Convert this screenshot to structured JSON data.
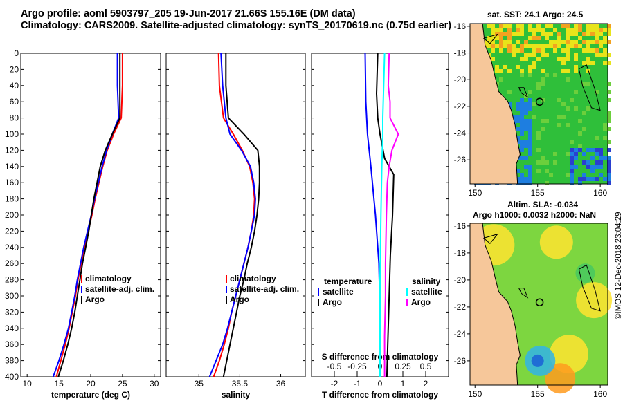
{
  "header": {
    "line1": "Argo profile: aoml 5903797_205 19-Jun-2017 21.66S 155.16E (DM data)",
    "line2": "Climatology: CARS2009. Satellite-adjusted climatology: synTS_20170619.nc (0.75d earlier)"
  },
  "stamp": "©IMOS 12-Dec-2018 23:04:29",
  "colors": {
    "climatology": "#ff0000",
    "satellite": "#0000ff",
    "argo": "#000000",
    "sat_diff": "#00ffff",
    "argo_diff": "#ff00ff",
    "land": "#f6c79a",
    "sst_warm": "#e8e41a",
    "sst_mid": "#2fbf3a",
    "sst_cool": "#1e7ee0",
    "sla_base": "#7dd640",
    "sla_high": "#ffe430",
    "sla_low": "#1a5fd6"
  },
  "chart_data": [
    {
      "id": "temperature",
      "type": "line",
      "xlabel": "temperature (deg C)",
      "ylabel": "",
      "xlim": [
        9,
        31
      ],
      "ylim": [
        400,
        0
      ],
      "xticks": [
        10,
        15,
        20,
        25,
        30
      ],
      "yticks": [
        0,
        20,
        40,
        60,
        80,
        100,
        120,
        140,
        160,
        180,
        200,
        220,
        240,
        260,
        280,
        300,
        320,
        340,
        360,
        380,
        400
      ],
      "legend": [
        "climatology",
        "satellite-adj. clim.",
        "Argo"
      ],
      "legend_position": "lower-middle",
      "series": [
        {
          "name": "climatology",
          "color": "#ff0000",
          "points": [
            [
              25.0,
              0
            ],
            [
              25.0,
              40
            ],
            [
              24.8,
              80
            ],
            [
              23.6,
              100
            ],
            [
              22.6,
              120
            ],
            [
              21.9,
              140
            ],
            [
              21.3,
              160
            ],
            [
              20.7,
              180
            ],
            [
              20.2,
              200
            ],
            [
              19.6,
              220
            ],
            [
              19.0,
              240
            ],
            [
              18.5,
              260
            ],
            [
              18.0,
              280
            ],
            [
              17.6,
              300
            ],
            [
              17.1,
              320
            ],
            [
              16.6,
              340
            ],
            [
              16.0,
              360
            ],
            [
              15.3,
              380
            ],
            [
              14.6,
              400
            ]
          ]
        },
        {
          "name": "satellite-adj. clim.",
          "color": "#0000ff",
          "points": [
            [
              24.2,
              0
            ],
            [
              24.2,
              40
            ],
            [
              24.4,
              80
            ],
            [
              23.4,
              100
            ],
            [
              22.5,
              120
            ],
            [
              21.8,
              140
            ],
            [
              21.2,
              160
            ],
            [
              20.6,
              180
            ],
            [
              20.1,
              200
            ],
            [
              19.5,
              220
            ],
            [
              18.9,
              240
            ],
            [
              18.4,
              260
            ],
            [
              17.9,
              280
            ],
            [
              17.5,
              300
            ],
            [
              17.0,
              320
            ],
            [
              16.5,
              340
            ],
            [
              15.8,
              360
            ],
            [
              15.0,
              380
            ],
            [
              14.1,
              400
            ]
          ]
        },
        {
          "name": "Argo",
          "color": "#000000",
          "points": [
            [
              24.6,
              0
            ],
            [
              24.6,
              40
            ],
            [
              24.6,
              80
            ],
            [
              23.4,
              100
            ],
            [
              22.3,
              120
            ],
            [
              21.5,
              140
            ],
            [
              21.0,
              160
            ],
            [
              20.5,
              180
            ],
            [
              20.1,
              200
            ],
            [
              19.7,
              220
            ],
            [
              19.2,
              240
            ],
            [
              18.7,
              260
            ],
            [
              18.3,
              280
            ],
            [
              17.9,
              300
            ],
            [
              17.5,
              320
            ],
            [
              17.0,
              340
            ],
            [
              16.4,
              360
            ],
            [
              15.7,
              380
            ],
            [
              14.9,
              400
            ]
          ]
        }
      ]
    },
    {
      "id": "salinity",
      "type": "line",
      "xlabel": "salinity",
      "ylabel": "",
      "xlim": [
        34.6,
        36.3
      ],
      "ylim": [
        400,
        0
      ],
      "xticks": [
        35,
        35.5,
        36
      ],
      "legend": [
        "climatology",
        "satellite-adj. clim.",
        "Argo"
      ],
      "legend_position": "lower-middle",
      "series": [
        {
          "name": "climatology",
          "color": "#ff0000",
          "points": [
            [
              35.24,
              0
            ],
            [
              35.25,
              40
            ],
            [
              35.3,
              80
            ],
            [
              35.42,
              100
            ],
            [
              35.53,
              120
            ],
            [
              35.62,
              140
            ],
            [
              35.66,
              160
            ],
            [
              35.68,
              180
            ],
            [
              35.67,
              200
            ],
            [
              35.64,
              220
            ],
            [
              35.6,
              240
            ],
            [
              35.55,
              260
            ],
            [
              35.5,
              280
            ],
            [
              35.45,
              300
            ],
            [
              35.4,
              320
            ],
            [
              35.36,
              340
            ],
            [
              35.31,
              360
            ],
            [
              35.25,
              380
            ],
            [
              35.18,
              400
            ]
          ]
        },
        {
          "name": "satellite-adj. clim.",
          "color": "#0000ff",
          "points": [
            [
              35.27,
              0
            ],
            [
              35.29,
              40
            ],
            [
              35.33,
              80
            ],
            [
              35.38,
              100
            ],
            [
              35.52,
              120
            ],
            [
              35.63,
              140
            ],
            [
              35.67,
              160
            ],
            [
              35.69,
              180
            ],
            [
              35.68,
              200
            ],
            [
              35.64,
              220
            ],
            [
              35.6,
              240
            ],
            [
              35.55,
              260
            ],
            [
              35.5,
              280
            ],
            [
              35.45,
              300
            ],
            [
              35.4,
              320
            ],
            [
              35.35,
              340
            ],
            [
              35.29,
              360
            ],
            [
              35.21,
              380
            ],
            [
              35.13,
              400
            ]
          ]
        },
        {
          "name": "Argo",
          "color": "#000000",
          "points": [
            [
              35.33,
              0
            ],
            [
              35.33,
              40
            ],
            [
              35.36,
              80
            ],
            [
              35.55,
              100
            ],
            [
              35.72,
              120
            ],
            [
              35.74,
              140
            ],
            [
              35.74,
              160
            ],
            [
              35.73,
              180
            ],
            [
              35.71,
              200
            ],
            [
              35.68,
              220
            ],
            [
              35.64,
              240
            ],
            [
              35.59,
              260
            ],
            [
              35.55,
              280
            ],
            [
              35.5,
              300
            ],
            [
              35.46,
              320
            ],
            [
              35.42,
              340
            ],
            [
              35.38,
              360
            ],
            [
              35.34,
              380
            ],
            [
              35.3,
              400
            ]
          ]
        }
      ]
    },
    {
      "id": "difference",
      "type": "line",
      "xlabel": "T difference from climatology",
      "top_axis_label": "S difference from climatology",
      "ylabel": "",
      "xlim": [
        -3,
        3
      ],
      "ylim": [
        400,
        0
      ],
      "xticks": [
        -2,
        -1,
        0,
        1,
        2
      ],
      "s_xlim": [
        -0.75,
        0.75
      ],
      "s_xticks": [
        -0.5,
        -0.25,
        0,
        0.25,
        0.5
      ],
      "s_xtick_labels": [
        "-0.5",
        "-0.25",
        "0",
        "0.25",
        "0.5"
      ],
      "legend_temperature_heading": "temperature",
      "legend_salinity_heading": "salinity",
      "legend_temperature": [
        "satellite",
        "Argo"
      ],
      "legend_salinity": [
        "satellite",
        "Argo"
      ],
      "series": [
        {
          "name": "T satellite",
          "color": "#0000ff",
          "axis": "T",
          "points": [
            [
              -0.65,
              0
            ],
            [
              -0.62,
              60
            ],
            [
              -0.55,
              100
            ],
            [
              -0.4,
              140
            ],
            [
              -0.2,
              200
            ],
            [
              -0.05,
              260
            ],
            [
              0.0,
              320
            ],
            [
              0.0,
              400
            ]
          ]
        },
        {
          "name": "T Argo",
          "color": "#000000",
          "axis": "T",
          "points": [
            [
              -0.1,
              0
            ],
            [
              -0.15,
              50
            ],
            [
              -0.1,
              80
            ],
            [
              0.0,
              100
            ],
            [
              0.2,
              130
            ],
            [
              0.6,
              150
            ],
            [
              0.55,
              200
            ],
            [
              0.45,
              250
            ],
            [
              0.4,
              300
            ],
            [
              0.35,
              350
            ],
            [
              0.3,
              400
            ]
          ]
        },
        {
          "name": "S satellite",
          "color": "#00ffff",
          "axis": "S",
          "points": [
            [
              0.05,
              0
            ],
            [
              0.04,
              40
            ],
            [
              0.03,
              80
            ],
            [
              0.03,
              100
            ],
            [
              0.02,
              140
            ],
            [
              0.01,
              200
            ],
            [
              0.0,
              280
            ],
            [
              0.0,
              400
            ]
          ]
        },
        {
          "name": "S Argo",
          "color": "#ff00ff",
          "axis": "S",
          "points": [
            [
              0.1,
              0
            ],
            [
              0.09,
              40
            ],
            [
              0.11,
              60
            ],
            [
              0.11,
              80
            ],
            [
              0.2,
              100
            ],
            [
              0.13,
              120
            ],
            [
              0.1,
              140
            ],
            [
              0.08,
              160
            ],
            [
              0.07,
              200
            ],
            [
              0.06,
              260
            ],
            [
              0.06,
              300
            ],
            [
              0.05,
              350
            ],
            [
              0.05,
              400
            ]
          ]
        }
      ]
    }
  ],
  "maps": [
    {
      "id": "sst-map",
      "title_lines": [
        "sat. SST: 24.1 Argo: 24.5"
      ],
      "xticks": [
        150,
        155,
        160
      ],
      "yticks": [
        -16,
        -18,
        -20,
        -22,
        -24,
        -26
      ],
      "xlim": [
        149.6,
        160.6
      ],
      "ylim": [
        -27.8,
        -15.8
      ],
      "argo_position": [
        155.16,
        -21.66
      ]
    },
    {
      "id": "sla-map",
      "title_lines": [
        "Altim. SLA: -0.034",
        "Argo h1000: 0.0032 h2000: NaN"
      ],
      "xticks": [
        150,
        155,
        160
      ],
      "yticks": [
        -16,
        -18,
        -20,
        -22,
        -24,
        -26
      ],
      "xlim": [
        149.6,
        160.6
      ],
      "ylim": [
        -27.8,
        -15.8
      ],
      "argo_position": [
        155.16,
        -21.66
      ]
    }
  ]
}
